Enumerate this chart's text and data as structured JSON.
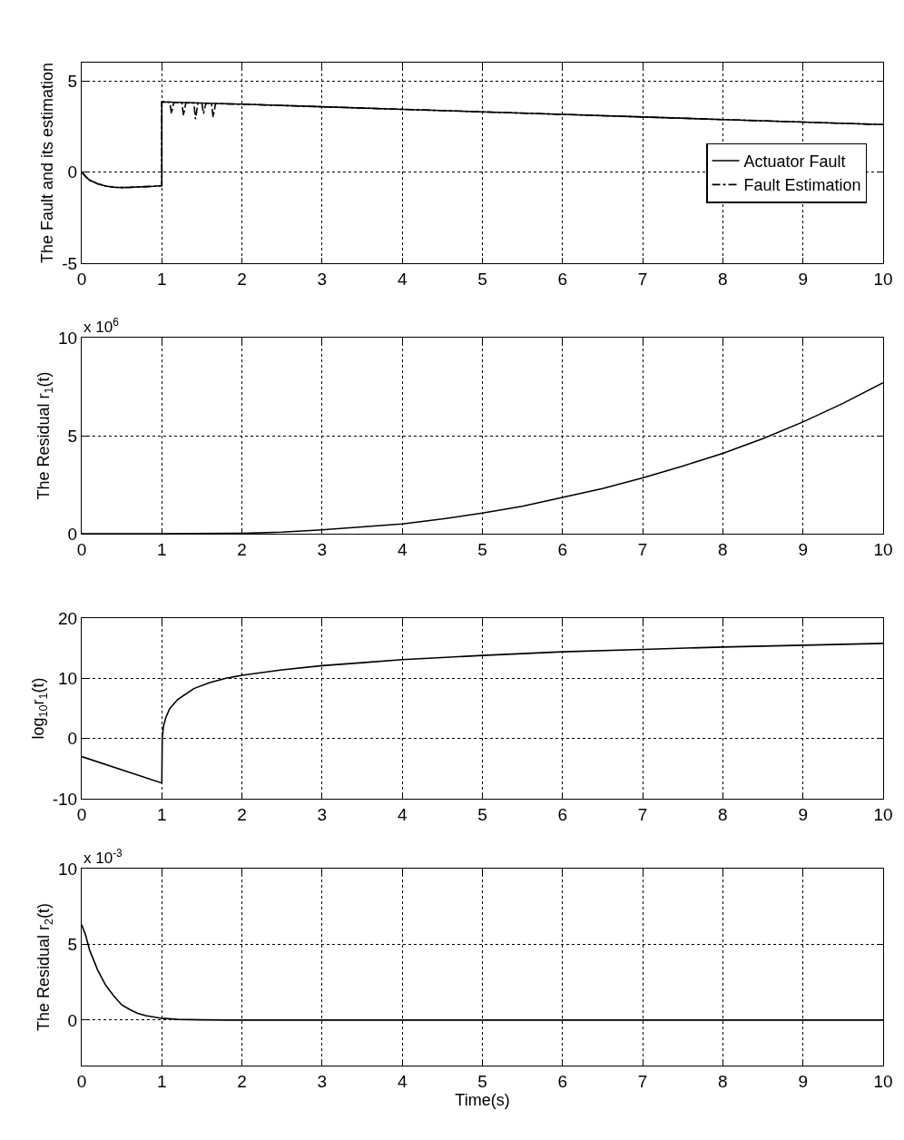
{
  "chart_data": [
    {
      "type": "line",
      "ylabel": "The Fault and its estimation",
      "xlim": [
        0,
        10
      ],
      "xticks": [
        0,
        1,
        2,
        3,
        4,
        5,
        6,
        7,
        8,
        9,
        10
      ],
      "ylim": [
        -5,
        6
      ],
      "yticks": [
        -5,
        0,
        5
      ],
      "grid": true,
      "legend": "right",
      "marker": "none",
      "series": [
        {
          "name": "Actuator Fault",
          "color": "#000000",
          "line_style": "solid",
          "x": [
            0,
            0.05,
            0.1,
            0.2,
            0.3,
            0.4,
            0.5,
            0.6,
            0.7,
            0.8,
            0.9,
            1.0,
            1.0,
            2,
            3,
            4,
            5,
            6,
            7,
            8,
            9,
            10
          ],
          "values": [
            0,
            -0.25,
            -0.45,
            -0.65,
            -0.77,
            -0.83,
            -0.85,
            -0.84,
            -0.82,
            -0.8,
            -0.78,
            -0.75,
            3.85,
            3.72,
            3.58,
            3.44,
            3.3,
            3.16,
            3.02,
            2.88,
            2.74,
            2.6
          ]
        },
        {
          "name": "Fault Estimation",
          "color": "#000000",
          "line_style": "dashdot",
          "x": [
            0,
            0.05,
            0.1,
            0.2,
            0.3,
            0.4,
            0.5,
            0.6,
            0.7,
            0.8,
            0.9,
            1.0,
            1.0,
            1.1,
            1.12,
            1.15,
            1.25,
            1.27,
            1.3,
            1.4,
            1.42,
            1.45,
            1.5,
            1.52,
            1.55,
            1.62,
            1.64,
            1.67,
            2,
            3,
            4,
            5,
            6,
            7,
            8,
            9,
            10
          ],
          "values": [
            0,
            -0.25,
            -0.45,
            -0.65,
            -0.77,
            -0.83,
            -0.85,
            -0.84,
            -0.82,
            -0.8,
            -0.78,
            -0.75,
            3.85,
            3.83,
            3.2,
            3.82,
            3.8,
            3.1,
            3.8,
            3.78,
            2.9,
            3.78,
            3.77,
            3.2,
            3.77,
            3.75,
            3.0,
            3.75,
            3.72,
            3.58,
            3.44,
            3.3,
            3.16,
            3.02,
            2.88,
            2.74,
            2.6
          ]
        }
      ]
    },
    {
      "type": "line",
      "ylabel": "The Residual r$_{1}$(t)",
      "annotations": [
        "x 10$^{6}$"
      ],
      "xlim": [
        0,
        10
      ],
      "xticks": [
        0,
        1,
        2,
        3,
        4,
        5,
        6,
        7,
        8,
        9,
        10
      ],
      "ylim": [
        0,
        10
      ],
      "yticks": [
        0,
        5,
        10
      ],
      "grid": true,
      "marker": "none",
      "series": [
        {
          "color": "#000000",
          "line_style": "solid",
          "x": [
            0,
            1,
            2,
            2.5,
            3,
            3.5,
            4,
            4.5,
            5,
            5.5,
            6,
            6.5,
            7,
            7.5,
            8,
            8.5,
            9,
            9.5,
            10
          ],
          "values": [
            0,
            0,
            0.02,
            0.08,
            0.2,
            0.35,
            0.5,
            0.75,
            1.05,
            1.4,
            1.85,
            2.3,
            2.85,
            3.45,
            4.1,
            4.85,
            5.7,
            6.65,
            7.7
          ]
        }
      ]
    },
    {
      "type": "line",
      "ylabel": "log$_{10}$r$_{1}$(t)",
      "xlim": [
        0,
        10
      ],
      "xticks": [
        0,
        1,
        2,
        3,
        4,
        5,
        6,
        7,
        8,
        9,
        10
      ],
      "ylim": [
        -10,
        20
      ],
      "yticks": [
        -10,
        0,
        10,
        20
      ],
      "grid": true,
      "marker": "none",
      "series": [
        {
          "color": "#000000",
          "line_style": "solid",
          "x": [
            0,
            1,
            1.005,
            1.02,
            1.05,
            1.1,
            1.2,
            1.4,
            1.6,
            1.8,
            2,
            2.5,
            3,
            3.5,
            4,
            5,
            6,
            7,
            8,
            9,
            10
          ],
          "values": [
            -3,
            -7.4,
            0,
            2,
            3.5,
            5,
            6.5,
            8.3,
            9.3,
            10,
            10.5,
            11.4,
            12.1,
            12.6,
            13.1,
            13.8,
            14.4,
            14.8,
            15.2,
            15.5,
            15.8
          ]
        }
      ]
    },
    {
      "type": "line",
      "xlabel": "Time(s)",
      "ylabel": "The Residual r$_{2}$(t)",
      "annotations": [
        "x 10$^{-3}$"
      ],
      "xlim": [
        0,
        10
      ],
      "xticks": [
        0,
        1,
        2,
        3,
        4,
        5,
        6,
        7,
        8,
        9,
        10
      ],
      "ylim": [
        -3,
        10
      ],
      "yticks": [
        0,
        5,
        10
      ],
      "grid": true,
      "marker": "none",
      "series": [
        {
          "color": "#000000",
          "line_style": "solid",
          "x": [
            0,
            0.05,
            0.1,
            0.2,
            0.3,
            0.4,
            0.5,
            0.6,
            0.7,
            0.8,
            1,
            1.2,
            1.5,
            2,
            10
          ],
          "values": [
            6.3,
            5.6,
            4.6,
            3.3,
            2.3,
            1.6,
            1.0,
            0.7,
            0.45,
            0.3,
            0.12,
            0.05,
            0.02,
            0,
            0
          ]
        }
      ]
    }
  ]
}
